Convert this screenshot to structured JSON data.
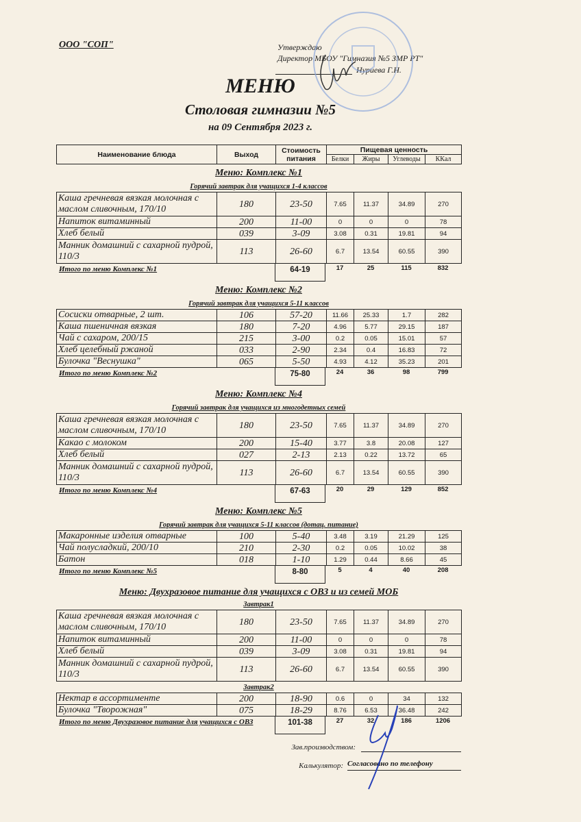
{
  "org": "ООО \"СОП\"",
  "approval": {
    "line1": "Утверждаю",
    "line2": "Директор МБОУ \"Гимназия №5 ЗМР РТ\"",
    "line3": "Нуриева Г.Н."
  },
  "title": "МЕНЮ",
  "subtitle": "Столовая гимназии №5",
  "date": "на 09 Сентября 2023 г.",
  "header": {
    "name": "Наименование блюда",
    "output": "Выход",
    "cost": "Стоимость питания",
    "nutrition": "Пищевая ценность",
    "protein": "Белки",
    "fat": "Жиры",
    "carbs": "Углеводы",
    "kcal": "ККал"
  },
  "sections": [
    {
      "title": "Меню: Комплекс №1",
      "subtitle": "Горячий завтрак для учащихся 1-4 классов",
      "groups": [
        {
          "label": "",
          "rows": [
            {
              "name": "Каша гречневая вязкая молочная с маслом сливочным, 170/10",
              "output": "180",
              "cost": "23-50",
              "protein": "7.65",
              "fat": "11.37",
              "carbs": "34.89",
              "kcal": "270"
            },
            {
              "name": "Напиток витаминный",
              "output": "200",
              "cost": "11-00",
              "protein": "0",
              "fat": "0",
              "carbs": "0",
              "kcal": "78"
            },
            {
              "name": "Хлеб белый",
              "output": "039",
              "cost": "3-09",
              "protein": "3.08",
              "fat": "0.31",
              "carbs": "19.81",
              "kcal": "94"
            },
            {
              "name": "Манник домашний с сахарной пудрой, 110/3",
              "output": "113",
              "cost": "26-60",
              "protein": "6.7",
              "fat": "13.54",
              "carbs": "60.55",
              "kcal": "390"
            }
          ]
        }
      ],
      "total": {
        "label": "Итого по меню Комплекс №1",
        "cost": "64-19",
        "protein": "17",
        "fat": "25",
        "carbs": "115",
        "kcal": "832"
      }
    },
    {
      "title": "Меню: Комплекс №2",
      "subtitle": "Горячий завтрак для учащихся 5-11 классов",
      "groups": [
        {
          "label": "",
          "rows": [
            {
              "name": "Сосиски  отварные, 2 шт.",
              "output": "106",
              "cost": "57-20",
              "protein": "11.66",
              "fat": "25.33",
              "carbs": "1.7",
              "kcal": "282"
            },
            {
              "name": "Каша пшеничная вязкая",
              "output": "180",
              "cost": "7-20",
              "protein": "4.96",
              "fat": "5.77",
              "carbs": "29.15",
              "kcal": "187"
            },
            {
              "name": "Чай с сахаром, 200/15",
              "output": "215",
              "cost": "3-00",
              "protein": "0.2",
              "fat": "0.05",
              "carbs": "15.01",
              "kcal": "57"
            },
            {
              "name": "Хлеб  целебный ржаной",
              "output": "033",
              "cost": "2-90",
              "protein": "2.34",
              "fat": "0.4",
              "carbs": "16.83",
              "kcal": "72"
            },
            {
              "name": "Булочка \"Веснушка\"",
              "output": "065",
              "cost": "5-50",
              "protein": "4.93",
              "fat": "4.12",
              "carbs": "35.23",
              "kcal": "201"
            }
          ]
        }
      ],
      "total": {
        "label": "Итого по меню Комплекс №2",
        "cost": "75-80",
        "protein": "24",
        "fat": "36",
        "carbs": "98",
        "kcal": "799"
      }
    },
    {
      "title": "Меню: Комплекс №4",
      "subtitle": "Горячий завтрак для учащихся из многодетных семей",
      "groups": [
        {
          "label": "",
          "rows": [
            {
              "name": "Каша гречневая вязкая молочная с маслом сливочным, 170/10",
              "output": "180",
              "cost": "23-50",
              "protein": "7.65",
              "fat": "11.37",
              "carbs": "34.89",
              "kcal": "270"
            },
            {
              "name": "Какао с  молоком",
              "output": "200",
              "cost": "15-40",
              "protein": "3.77",
              "fat": "3.8",
              "carbs": "20.08",
              "kcal": "127"
            },
            {
              "name": "Хлеб белый",
              "output": "027",
              "cost": "2-13",
              "protein": "2.13",
              "fat": "0.22",
              "carbs": "13.72",
              "kcal": "65"
            },
            {
              "name": "Манник домашний с сахарной пудрой, 110/3",
              "output": "113",
              "cost": "26-60",
              "protein": "6.7",
              "fat": "13.54",
              "carbs": "60.55",
              "kcal": "390"
            }
          ]
        }
      ],
      "total": {
        "label": "Итого по меню Комплекс №4",
        "cost": "67-63",
        "protein": "20",
        "fat": "29",
        "carbs": "129",
        "kcal": "852"
      }
    },
    {
      "title": "Меню: Комплекс №5",
      "subtitle": "Горячий завтрак для учащихся 5-11 классов (дотац. питание)",
      "groups": [
        {
          "label": "",
          "rows": [
            {
              "name": "Макаронные изделия отварные",
              "output": "100",
              "cost": "5-40",
              "protein": "3.48",
              "fat": "3.19",
              "carbs": "21.29",
              "kcal": "125"
            },
            {
              "name": "Чай полусладкий, 200/10",
              "output": "210",
              "cost": "2-30",
              "protein": "0.2",
              "fat": "0.05",
              "carbs": "10.02",
              "kcal": "38"
            },
            {
              "name": "Батон",
              "output": "018",
              "cost": "1-10",
              "protein": "1.29",
              "fat": "0.44",
              "carbs": "8.66",
              "kcal": "45"
            }
          ]
        }
      ],
      "total": {
        "label": "Итого по меню Комплекс №5",
        "cost": "8-80",
        "protein": "5",
        "fat": "4",
        "carbs": "40",
        "kcal": "208"
      }
    },
    {
      "title": "Меню: Двухразовое питание для учащихся с ОВЗ и из семей МОБ",
      "subtitle": "",
      "groups": [
        {
          "label": "Завтрак1",
          "rows": [
            {
              "name": "Каша гречневая вязкая молочная с маслом сливочным, 170/10",
              "output": "180",
              "cost": "23-50",
              "protein": "7.65",
              "fat": "11.37",
              "carbs": "34.89",
              "kcal": "270"
            },
            {
              "name": "Напиток витаминный",
              "output": "200",
              "cost": "11-00",
              "protein": "0",
              "fat": "0",
              "carbs": "0",
              "kcal": "78"
            },
            {
              "name": "Хлеб белый",
              "output": "039",
              "cost": "3-09",
              "protein": "3.08",
              "fat": "0.31",
              "carbs": "19.81",
              "kcal": "94"
            },
            {
              "name": "Манник домашний с сахарной пудрой, 110/3",
              "output": "113",
              "cost": "26-60",
              "protein": "6.7",
              "fat": "13.54",
              "carbs": "60.55",
              "kcal": "390"
            }
          ]
        },
        {
          "label": "Завтрак2",
          "rows": [
            {
              "name": "Нектар в ассортименте",
              "output": "200",
              "cost": "18-90",
              "protein": "0.6",
              "fat": "0",
              "carbs": "34",
              "kcal": "132"
            },
            {
              "name": "Булочка \"Творожная\"",
              "output": "075",
              "cost": "18-29",
              "protein": "8.76",
              "fat": "6.53",
              "carbs": "36.48",
              "kcal": "242"
            }
          ]
        }
      ],
      "total": {
        "label": "Итого по меню Двухразовое питание для учащихся с ОВЗ",
        "cost": "101-38",
        "protein": "27",
        "fat": "32",
        "carbs": "186",
        "kcal": "1206"
      }
    }
  ],
  "footer": {
    "production_label": "Зав.производством:",
    "calculator_label": "Калькулятор:",
    "calculator_value": "Согласовано по телефону"
  },
  "colors": {
    "paper": "#f6f0e4",
    "stamp": "#7f9fd6",
    "signature": "#2740b8"
  }
}
